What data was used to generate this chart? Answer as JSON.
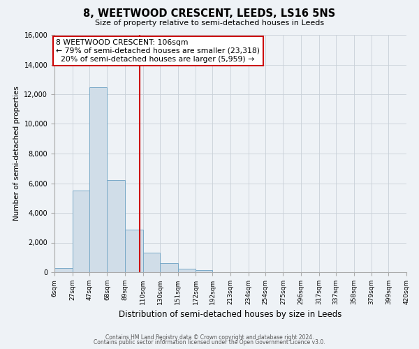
{
  "title": "8, WEETWOOD CRESCENT, LEEDS, LS16 5NS",
  "subtitle": "Size of property relative to semi-detached houses in Leeds",
  "xlabel": "Distribution of semi-detached houses by size in Leeds",
  "ylabel": "Number of semi-detached properties",
  "bin_edges": [
    6,
    27,
    47,
    68,
    89,
    110,
    130,
    151,
    172,
    192,
    213,
    234,
    254,
    275,
    296,
    317,
    337,
    358,
    379,
    399,
    420
  ],
  "bin_labels": [
    "6sqm",
    "27sqm",
    "47sqm",
    "68sqm",
    "89sqm",
    "110sqm",
    "130sqm",
    "151sqm",
    "172sqm",
    "192sqm",
    "213sqm",
    "234sqm",
    "254sqm",
    "275sqm",
    "296sqm",
    "317sqm",
    "337sqm",
    "358sqm",
    "379sqm",
    "399sqm",
    "420sqm"
  ],
  "bar_heights": [
    280,
    5500,
    12450,
    6200,
    2850,
    1300,
    600,
    220,
    150,
    0,
    0,
    0,
    0,
    0,
    0,
    0,
    0,
    0,
    0,
    0
  ],
  "bar_color": "#d0dde8",
  "bar_edge_color": "#7aaac8",
  "marker_value": 106,
  "marker_color": "#cc0000",
  "annotation_title": "8 WEETWOOD CRESCENT: 106sqm",
  "annotation_line1": "← 79% of semi-detached houses are smaller (23,318)",
  "annotation_line2": "  20% of semi-detached houses are larger (5,959) →",
  "annotation_box_color": "#ffffff",
  "annotation_box_edge": "#cc0000",
  "ylim": [
    0,
    16000
  ],
  "yticks": [
    0,
    2000,
    4000,
    6000,
    8000,
    10000,
    12000,
    14000,
    16000
  ],
  "footer_line1": "Contains HM Land Registry data © Crown copyright and database right 2024.",
  "footer_line2": "Contains public sector information licensed under the Open Government Licence v3.0.",
  "background_color": "#eef2f6"
}
